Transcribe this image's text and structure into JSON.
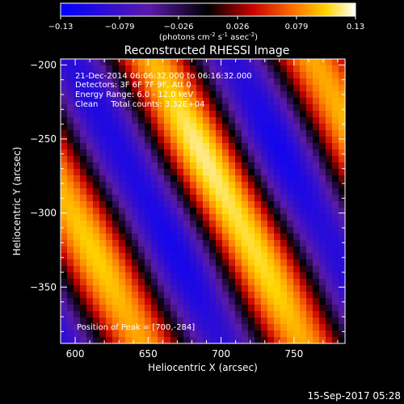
{
  "chart_data": {
    "type": "heatmap",
    "title": "Reconstructed RHESSI Image",
    "xlabel": "Heliocentric X (arcsec)",
    "ylabel": "Heliocentric Y (arcsec)",
    "xlim": [
      590,
      785
    ],
    "ylim": [
      -388,
      -196
    ],
    "xticks": [
      600,
      650,
      700,
      750
    ],
    "yticks": [
      -200,
      -250,
      -300,
      -350
    ],
    "colorbar": {
      "range": [
        -0.13,
        0.13
      ],
      "ticks": [
        "-0.13",
        "-0.079",
        "-0.026",
        "0.026",
        "0.079",
        "0.13"
      ],
      "unit_label": "(photons cm",
      "unit_sup1": "-2",
      "unit_mid1": " s",
      "unit_sup2": "-1",
      "unit_mid2": " asec",
      "unit_sup3": "-2",
      "unit_end": ")"
    },
    "annotations": [
      "21-Dec-2014 06:06:32.000 to 06:16:32.000",
      "Detectors: 3F 6F 7F 9F, Att 0",
      "Energy Range: 6.0 - 12.0 keV",
      "Clean     Total counts: 3.32E+04"
    ],
    "peak_label": "Position of Peak = [700,-284]",
    "peak": [
      700,
      -284
    ],
    "peak_value": 0.13,
    "grid": false
  },
  "timestamp": "15-Sep-2017 05:28"
}
